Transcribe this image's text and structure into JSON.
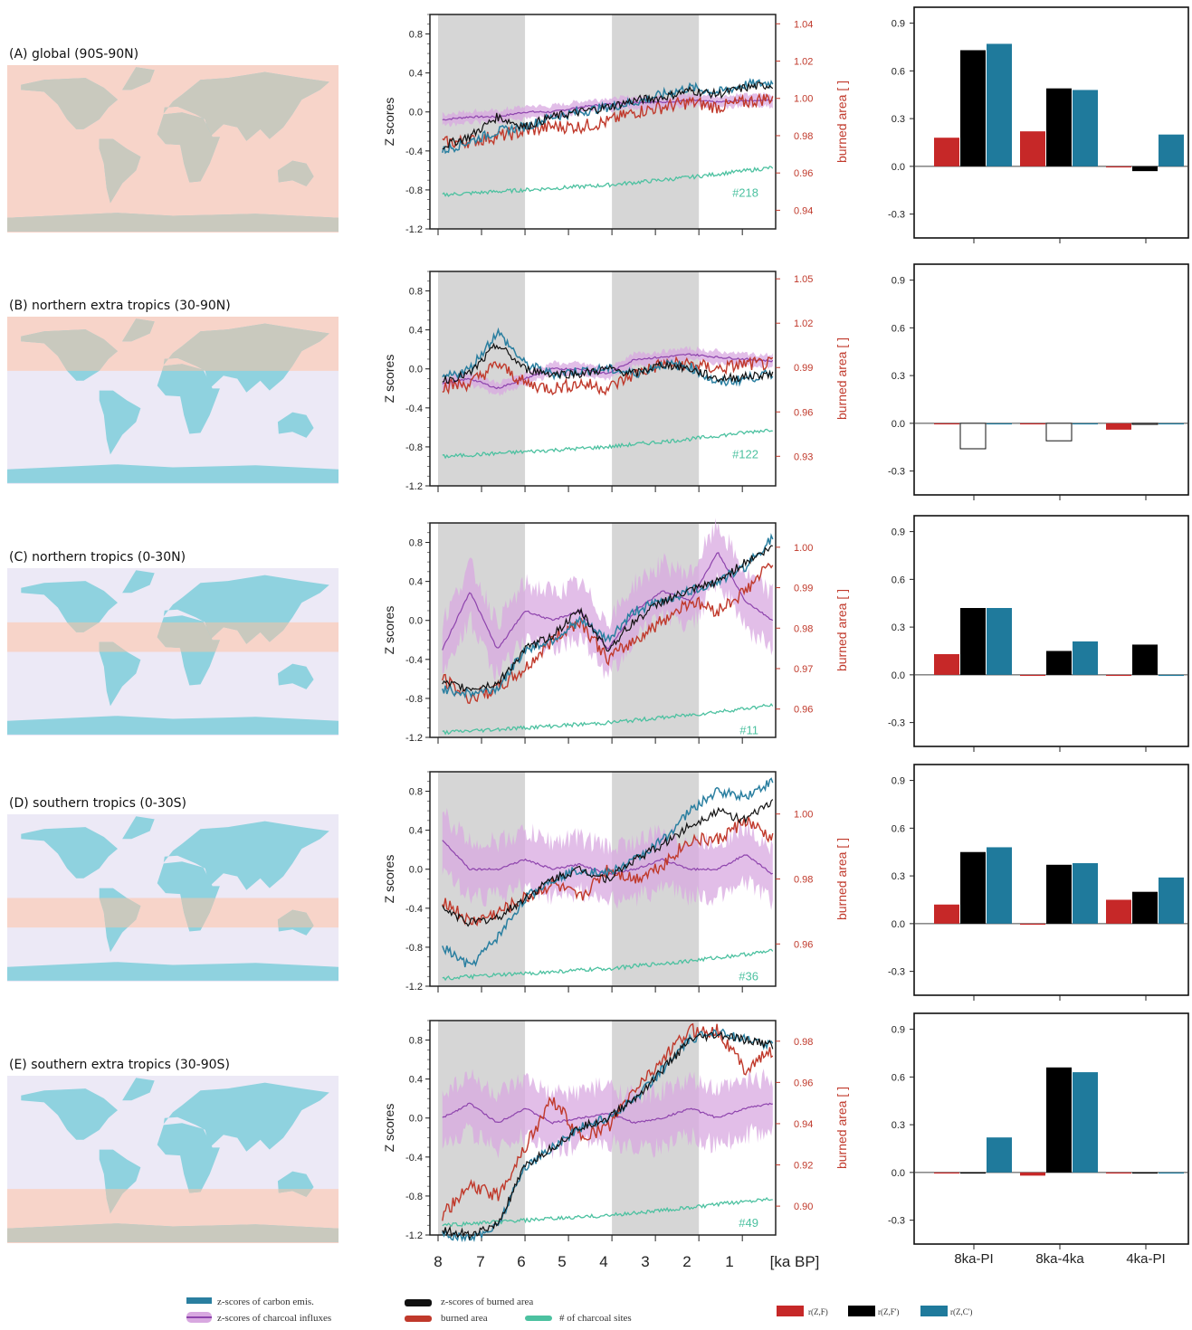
{
  "colors": {
    "carbon": "#2a7fa0",
    "charcoal": "#8e44ad",
    "charcoal_band": "#d8a8e0",
    "burned_z": "#111111",
    "burned": "#c0392b",
    "sites": "#4cc1a0",
    "shade": "#d6d6d6",
    "bar_zf": "#c62828",
    "bar_zfp": "#000000",
    "bar_zc": "#1f7a9c",
    "map_sea_in": "#f7d4c9",
    "map_sea_out": "#ece9f6",
    "map_land_in": "#c9c9be",
    "map_land_out": "#8fd2df"
  },
  "shaded_periods": [
    [
      8,
      6
    ],
    [
      4,
      2
    ]
  ],
  "x_axis": {
    "ticks": [
      "8",
      "7",
      "6",
      "5",
      "4",
      "3",
      "2",
      "1"
    ],
    "unit": "[ka BP]",
    "range": [
      8.1,
      0.1
    ]
  },
  "ylabel_left": "Z scores",
  "ylabel_right": "burned area [ ]",
  "bar_categories": [
    "8ka-PI",
    "8ka-4ka",
    "4ka-PI"
  ],
  "bar_yticks": [
    "0.9",
    "0.6",
    "0.3",
    "0.0",
    "-0.3"
  ],
  "panels": [
    {
      "title": "(A) global (90S-90N)",
      "band_lat": [
        -90,
        90
      ],
      "yticks_left": [
        "0.8",
        "0.4",
        "0.0",
        "-0.4",
        "-0.8",
        "-1.2"
      ],
      "yticks_right": [
        "1.04",
        "1.02",
        "1.00",
        "0.98",
        "0.96",
        "0.94"
      ],
      "right_range": [
        0.93,
        1.045
      ],
      "sites_label": "#218",
      "sites_level": -0.85,
      "carbon": [
        -0.4,
        -0.3,
        -0.2,
        -0.15,
        -0.05,
        0.0,
        0.05,
        0.1,
        0.18,
        0.25,
        0.2,
        0.28,
        0.3
      ],
      "burned_z": [
        -0.35,
        -0.25,
        -0.05,
        -0.15,
        -0.05,
        0.0,
        0.05,
        0.12,
        0.15,
        0.22,
        0.18,
        0.25,
        0.28
      ],
      "charcoal": [
        -0.08,
        -0.05,
        -0.05,
        0.0,
        0.0,
        0.05,
        0.08,
        0.1,
        0.1,
        0.12,
        0.1,
        0.12,
        0.12
      ],
      "burned": [
        -0.32,
        -0.3,
        -0.25,
        -0.2,
        -0.15,
        -0.15,
        -0.1,
        0.0,
        0.05,
        0.1,
        0.05,
        0.1,
        0.15
      ],
      "bars": {
        "zf": [
          0.18,
          0.22,
          0.0
        ],
        "zfp": [
          0.73,
          0.49,
          -0.03
        ],
        "zc": [
          0.77,
          0.48,
          0.2
        ]
      }
    },
    {
      "title": "(B) northern extra tropics (30-90N)",
      "band_lat": [
        30,
        90
      ],
      "yticks_left": [
        "0.8",
        "0.4",
        "0.0",
        "-0.4",
        "-0.8",
        "-1.2"
      ],
      "yticks_right": [
        "1.05",
        "1.02",
        "0.99",
        "0.96",
        "0.93"
      ],
      "right_range": [
        0.91,
        1.055
      ],
      "sites_label": "#122",
      "sites_level": -0.9,
      "carbon": [
        -0.1,
        0.0,
        0.38,
        0.05,
        -0.05,
        -0.02,
        0.0,
        -0.05,
        0.05,
        0.02,
        -0.15,
        -0.1,
        -0.05
      ],
      "burned_z": [
        -0.12,
        -0.05,
        0.25,
        0.0,
        -0.05,
        -0.05,
        0.0,
        -0.05,
        0.05,
        0.0,
        -0.1,
        -0.08,
        -0.05
      ],
      "charcoal": [
        -0.15,
        -0.1,
        -0.2,
        -0.1,
        0.0,
        0.0,
        -0.05,
        0.1,
        0.12,
        0.15,
        0.12,
        0.1,
        0.08
      ],
      "burned": [
        -0.18,
        -0.15,
        0.05,
        -0.15,
        -0.2,
        -0.15,
        -0.2,
        -0.05,
        0.05,
        0.05,
        0.0,
        0.05,
        0.05
      ],
      "bars": {
        "zf": [
          0.0,
          0.0,
          -0.04
        ],
        "zfp": [
          -0.16,
          -0.11,
          0.0
        ],
        "zc": [
          0.0,
          0.0,
          0.0
        ]
      },
      "hollow": true
    },
    {
      "title": "(C) northern tropics (0-30N)",
      "band_lat": [
        0,
        30
      ],
      "yticks_left": [
        "0.8",
        "0.4",
        "0.0",
        "-0.4",
        "-0.8",
        "-1.2"
      ],
      "yticks_right": [
        "1.00",
        "0.99",
        "0.98",
        "0.97",
        "0.96"
      ],
      "right_range": [
        0.953,
        1.006
      ],
      "sites_label": "#11",
      "sites_level": -1.15,
      "carbon": [
        -0.7,
        -0.75,
        -0.7,
        -0.3,
        -0.2,
        0.0,
        -0.2,
        0.1,
        0.2,
        0.3,
        0.4,
        0.55,
        0.85
      ],
      "burned_z": [
        -0.65,
        -0.7,
        -0.65,
        -0.3,
        -0.15,
        0.1,
        -0.3,
        0.0,
        0.2,
        0.3,
        0.4,
        0.6,
        0.75
      ],
      "charcoal": [
        -0.3,
        0.3,
        -0.3,
        0.1,
        0.0,
        0.1,
        -0.3,
        0.1,
        0.3,
        0.2,
        0.7,
        0.2,
        0.0
      ],
      "burned": [
        -0.6,
        -0.8,
        -0.7,
        -0.5,
        -0.2,
        0.0,
        -0.4,
        -0.2,
        0.0,
        0.2,
        0.1,
        0.3,
        0.6
      ],
      "bars": {
        "zf": [
          0.13,
          0.0,
          0.0
        ],
        "zfp": [
          0.42,
          0.15,
          0.19
        ],
        "zc": [
          0.42,
          0.21,
          0.0
        ]
      }
    },
    {
      "title": "(D) southern tropics (0-30S)",
      "band_lat": [
        -30,
        0
      ],
      "yticks_left": [
        "0.8",
        "0.4",
        "0.0",
        "-0.4",
        "-0.8",
        "-1.2"
      ],
      "yticks_right": [
        "1.00",
        "0.98",
        "0.96"
      ],
      "right_range": [
        0.947,
        1.013
      ],
      "sites_label": "#36",
      "sites_level": -1.12,
      "carbon": [
        -0.8,
        -1.0,
        -0.7,
        -0.3,
        -0.1,
        0.0,
        -0.05,
        0.1,
        0.3,
        0.6,
        0.8,
        0.75,
        0.9
      ],
      "burned_z": [
        -0.4,
        -0.55,
        -0.5,
        -0.3,
        -0.1,
        0.0,
        -0.1,
        0.1,
        0.25,
        0.45,
        0.6,
        0.5,
        0.7
      ],
      "charcoal": [
        0.3,
        0.0,
        0.0,
        0.1,
        0.0,
        0.05,
        -0.05,
        0.0,
        0.1,
        0.0,
        0.0,
        0.15,
        -0.05
      ],
      "burned": [
        -0.3,
        -0.55,
        -0.45,
        -0.3,
        -0.15,
        -0.3,
        0.0,
        -0.1,
        0.05,
        0.3,
        0.3,
        0.5,
        0.3
      ],
      "bars": {
        "zf": [
          0.12,
          0.0,
          0.15
        ],
        "zfp": [
          0.45,
          0.37,
          0.2
        ],
        "zc": [
          0.48,
          0.38,
          0.29
        ]
      }
    },
    {
      "title": "(E) southern extra tropics (30-90S)",
      "band_lat": [
        -90,
        -30
      ],
      "yticks_left": [
        "0.8",
        "0.4",
        "0.0",
        "-0.4",
        "-0.8",
        "-1.2"
      ],
      "yticks_right": [
        "0.98",
        "0.96",
        "0.94",
        "0.92",
        "0.90"
      ],
      "right_range": [
        0.886,
        0.99
      ],
      "sites_label": "#49",
      "sites_level": -1.1,
      "carbon": [
        -1.2,
        -1.25,
        -1.1,
        -0.5,
        -0.3,
        -0.1,
        0.0,
        0.2,
        0.5,
        0.8,
        0.9,
        0.8,
        0.75
      ],
      "burned_z": [
        -1.15,
        -1.2,
        -1.1,
        -0.5,
        -0.3,
        -0.1,
        0.0,
        0.2,
        0.5,
        0.8,
        0.85,
        0.8,
        0.75
      ],
      "charcoal": [
        0.0,
        0.15,
        -0.05,
        0.1,
        -0.05,
        0.0,
        0.05,
        -0.05,
        0.0,
        0.1,
        0.0,
        0.1,
        0.15
      ],
      "burned": [
        -1.0,
        -0.7,
        -0.8,
        -0.3,
        0.2,
        -0.2,
        -0.1,
        0.3,
        0.6,
        0.9,
        0.9,
        0.5,
        0.7
      ],
      "bars": {
        "zf": [
          0.0,
          -0.02,
          0.0
        ],
        "zfp": [
          0.0,
          0.66,
          0.0
        ],
        "zc": [
          0.22,
          0.63,
          0.0
        ]
      }
    }
  ],
  "legend": {
    "carbon": "z-scores of carbon emis.",
    "charcoal": "z-scores of charcoal influxes",
    "burned_z": "z-scores of burned area",
    "burned": "burned area",
    "sites": "# of charcoal sites",
    "bar_zf": "r(Z,F)",
    "bar_zfp": "r(Z,F')",
    "bar_zc": "r(Z,C')"
  }
}
